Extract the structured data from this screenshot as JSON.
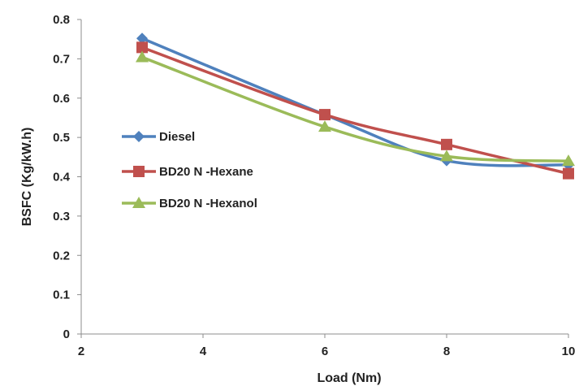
{
  "chart_data": {
    "type": "line",
    "xlabel": "Load (Nm)",
    "ylabel": "BSFC (Kg/kW.h)",
    "xlim": [
      2,
      10
    ],
    "ylim": [
      0,
      0.8
    ],
    "x_ticks": [
      2,
      4,
      6,
      8,
      10
    ],
    "y_ticks": [
      "0",
      "0.1",
      "0.2",
      "0.3",
      "0.4",
      "0.5",
      "0.6",
      "0.7",
      "0.8"
    ],
    "grid": false,
    "legend_position": "center-left",
    "series": [
      {
        "name": "Diesel",
        "color": "#4f81bd",
        "marker": "diamond",
        "x": [
          3,
          6,
          8,
          10
        ],
        "y": [
          0.752,
          0.558,
          0.441,
          0.43
        ]
      },
      {
        "name": "BD20 N -Hexane",
        "color": "#c0504d",
        "marker": "square",
        "x": [
          3,
          6,
          8,
          10
        ],
        "y": [
          0.729,
          0.558,
          0.482,
          0.408
        ]
      },
      {
        "name": "BD20 N -Hexanol",
        "color": "#9bbb59",
        "marker": "triangle",
        "x": [
          3,
          6,
          8,
          10
        ],
        "y": [
          0.704,
          0.527,
          0.452,
          0.44
        ]
      }
    ]
  }
}
